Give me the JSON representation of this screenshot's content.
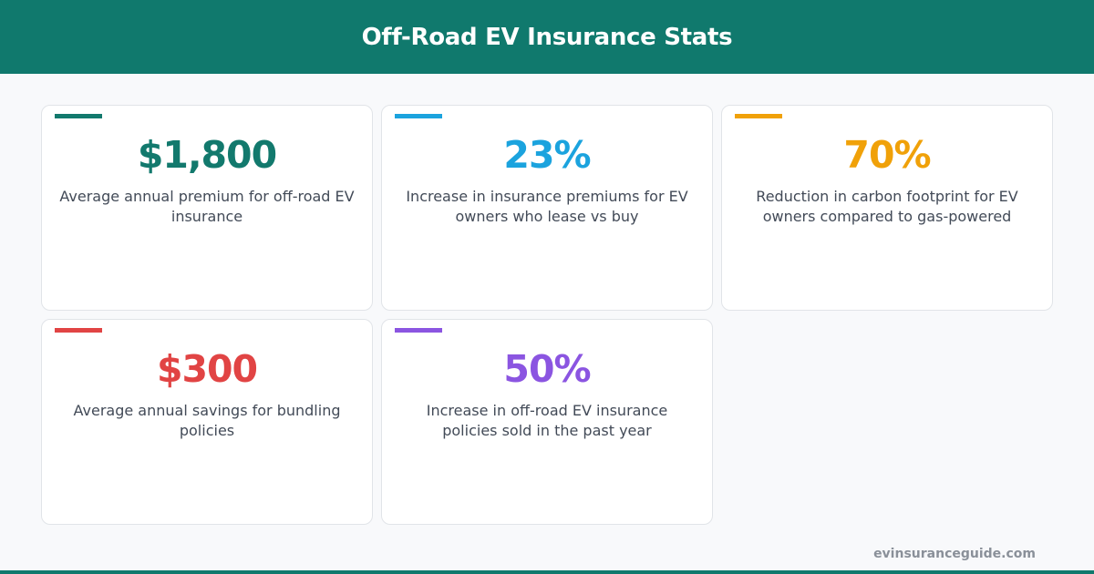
{
  "header": {
    "title": "Off-Road EV Insurance Stats"
  },
  "stats": [
    {
      "value": "$1,800",
      "description": "Average annual premium for off-road EV insurance",
      "color": "#12796d"
    },
    {
      "value": "23%",
      "description": "Increase in insurance premiums for EV owners who lease vs buy",
      "color": "#1ba3de"
    },
    {
      "value": "70%",
      "description": "Reduction in carbon footprint for EV owners compared to gas-powered",
      "color": "#f0a109"
    },
    {
      "value": "$300",
      "description": "Average annual savings for bundling policies",
      "color": "#e14444"
    },
    {
      "value": "50%",
      "description": "Increase in off-road EV insurance policies sold in the past year",
      "color": "#8b55e1"
    }
  ],
  "footer": {
    "url": "evinsuranceguide.com"
  },
  "colors": {
    "brand": "#10796d",
    "background": "#f8f9fb"
  }
}
